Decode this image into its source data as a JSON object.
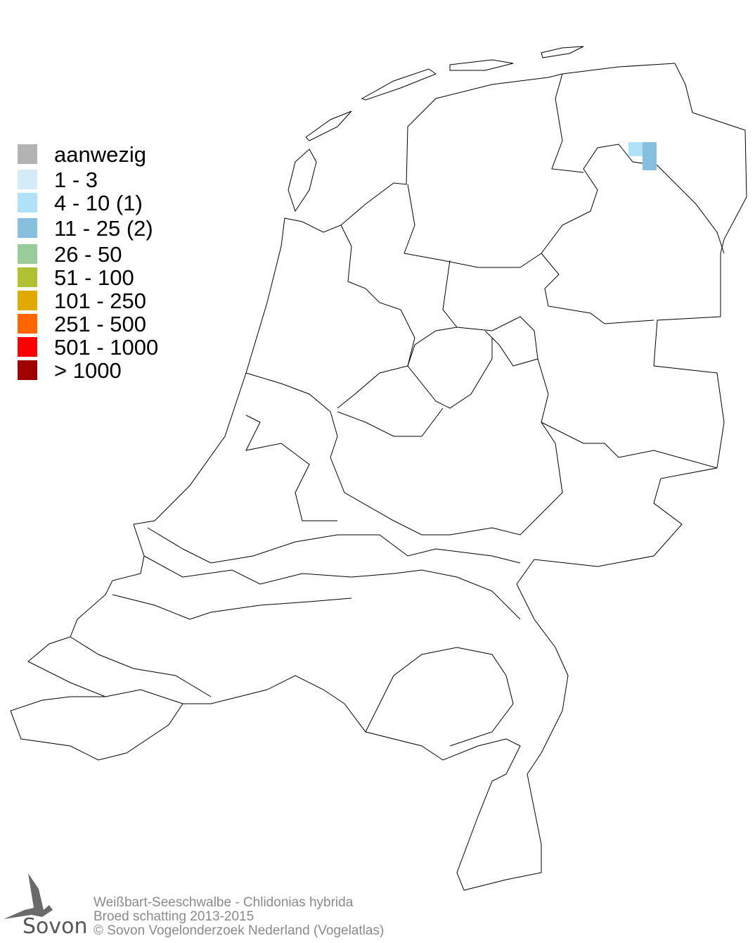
{
  "legend": {
    "items": [
      {
        "label": "aanwezig",
        "color": "#b3b3b3"
      },
      {
        "label": "1 - 3",
        "color": "#d4ebf8"
      },
      {
        "label": "4 - 10 (1)",
        "color": "#b2e2f8"
      },
      {
        "label": "11 - 25 (2)",
        "color": "#87c0de"
      },
      {
        "label": "26 - 50",
        "color": "#99cc99"
      },
      {
        "label": "51 - 100",
        "color": "#b1c030"
      },
      {
        "label": "101 - 250",
        "color": "#e1a800"
      },
      {
        "label": "251 - 500",
        "color": "#ff6600"
      },
      {
        "label": "501 - 1000",
        "color": "#ff0000"
      },
      {
        "label": "> 1000",
        "color": "#a00000"
      }
    ]
  },
  "occupied_cells": [
    {
      "category": "4 - 10",
      "color": "#b2e2f8",
      "count": 1
    },
    {
      "category": "11 - 25",
      "color": "#87c0de",
      "count": 2
    }
  ],
  "footer": {
    "species": "Weißbart-Seeschwalbe - Chlidonias hybrida",
    "subtitle": "Broed schatting 2013-2015",
    "copyright": "© Sovon Vogelonderzoek Nederland (Vogelatlas)"
  },
  "logo": {
    "text": "Sovon"
  }
}
